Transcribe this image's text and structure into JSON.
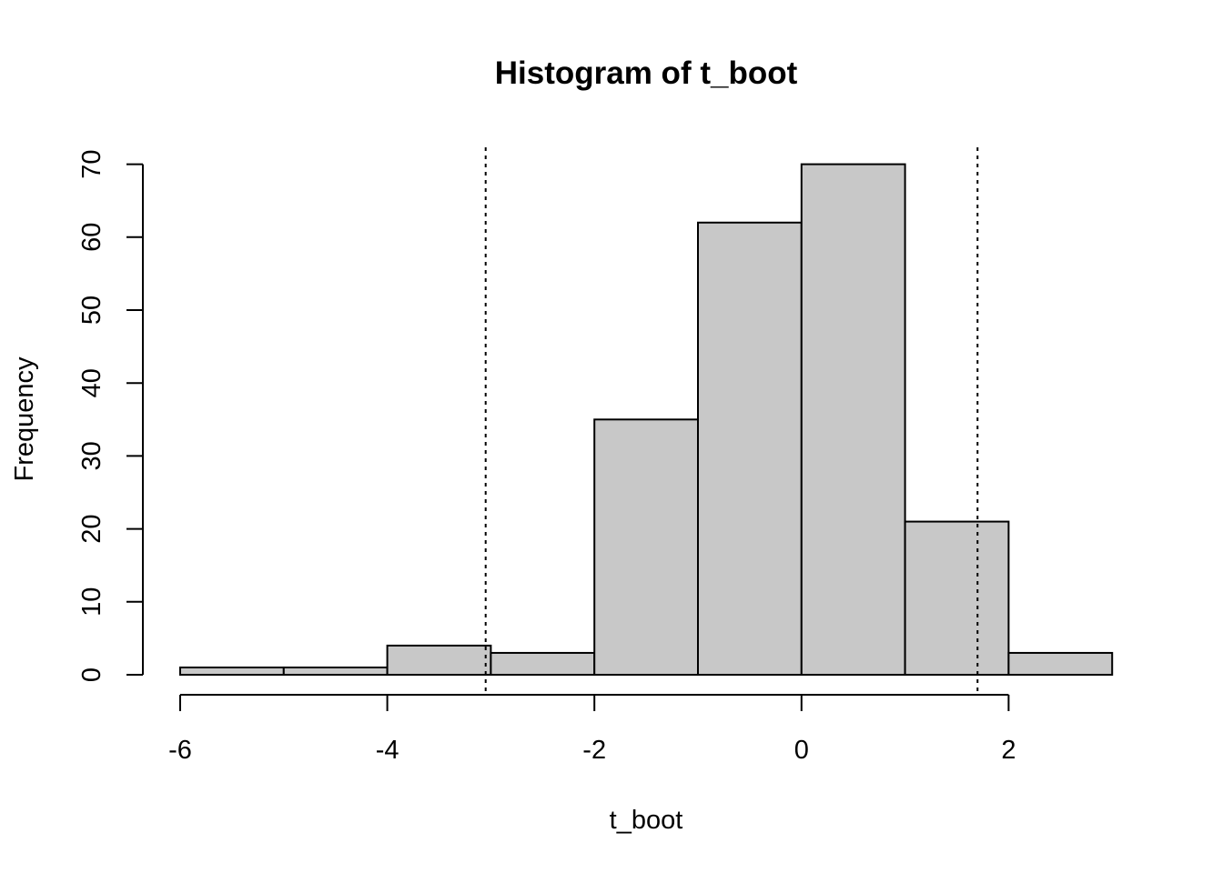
{
  "chart_data": {
    "type": "bar",
    "title": "Histogram of t_boot",
    "xlabel": "t_boot",
    "ylabel": "Frequency",
    "bins": [
      {
        "x0": -6,
        "x1": -5,
        "count": 1
      },
      {
        "x0": -5,
        "x1": -4,
        "count": 1
      },
      {
        "x0": -4,
        "x1": -3,
        "count": 4
      },
      {
        "x0": -3,
        "x1": -2,
        "count": 3
      },
      {
        "x0": -2,
        "x1": -1,
        "count": 35
      },
      {
        "x0": -1,
        "x1": 0,
        "count": 62
      },
      {
        "x0": 0,
        "x1": 1,
        "count": 70
      },
      {
        "x0": 1,
        "x1": 2,
        "count": 21
      },
      {
        "x0": 2,
        "x1": 3,
        "count": 3
      }
    ],
    "xticks": [
      -6,
      -4,
      -2,
      0,
      2
    ],
    "yticks": [
      0,
      10,
      20,
      30,
      40,
      50,
      60,
      70
    ],
    "xlim": [
      -6,
      3
    ],
    "ylim": [
      0,
      70
    ],
    "vlines": [
      -3.05,
      1.7
    ],
    "vline_style": "dotted",
    "bar_fill": "#c8c8c8",
    "grid": false
  }
}
